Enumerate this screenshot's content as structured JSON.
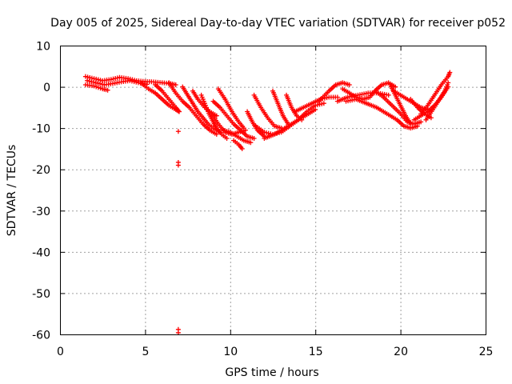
{
  "chart_data": {
    "type": "scatter",
    "title": "Day 005 of 2025, Sidereal Day-to-day VTEC variation (SDTVAR) for receiver p052",
    "xlabel": "GPS time / hours",
    "ylabel": "SDTVAR / TECUs",
    "xlim": [
      0,
      25
    ],
    "ylim": [
      -60,
      10
    ],
    "xticks": [
      0,
      5,
      10,
      15,
      20,
      25
    ],
    "yticks": [
      10,
      0,
      -10,
      -20,
      -30,
      -40,
      -50,
      -60
    ],
    "grid": true,
    "marker": "+",
    "series_color": "#ff0000",
    "series": [
      {
        "name": "SDTVAR",
        "tracks": [
          [
            [
              1.5,
              2.5
            ],
            [
              2.0,
              2.0
            ],
            [
              2.5,
              1.5
            ],
            [
              3.0,
              1.8
            ],
            [
              3.5,
              2.3
            ],
            [
              4.0,
              2.0
            ],
            [
              4.5,
              1.5
            ],
            [
              5.0,
              1.3
            ],
            [
              5.5,
              1.2
            ],
            [
              6.0,
              1.0
            ],
            [
              6.5,
              0.8
            ],
            [
              6.8,
              0.5
            ]
          ],
          [
            [
              1.6,
              1.5
            ],
            [
              2.1,
              1.0
            ],
            [
              2.6,
              0.5
            ],
            [
              3.1,
              0.8
            ],
            [
              3.6,
              1.2
            ],
            [
              4.1,
              1.5
            ],
            [
              4.6,
              1.0
            ],
            [
              5.1,
              0.6
            ]
          ],
          [
            [
              1.5,
              0.5
            ],
            [
              2.0,
              0.2
            ],
            [
              2.5,
              -0.5
            ],
            [
              2.8,
              -0.8
            ]
          ],
          [
            [
              4.8,
              0.8
            ],
            [
              5.2,
              -0.5
            ],
            [
              5.6,
              -1.5
            ],
            [
              6.0,
              -3.0
            ],
            [
              6.4,
              -4.5
            ],
            [
              6.8,
              -5.5
            ],
            [
              7.0,
              -6.0
            ]
          ],
          [
            [
              5.6,
              0.5
            ],
            [
              6.0,
              -1.0
            ],
            [
              6.4,
              -3.0
            ],
            [
              6.8,
              -5.0
            ],
            [
              7.0,
              -6.0
            ]
          ],
          [
            [
              6.4,
              1.0
            ],
            [
              6.8,
              -1.5
            ],
            [
              7.2,
              -3.5
            ],
            [
              7.6,
              -5.0
            ],
            [
              8.0,
              -7.0
            ],
            [
              8.4,
              -9.0
            ],
            [
              8.8,
              -10.5
            ],
            [
              9.2,
              -11.5
            ]
          ],
          [
            [
              7.2,
              0.0
            ],
            [
              7.5,
              -2.0
            ],
            [
              7.8,
              -4.0
            ],
            [
              8.1,
              -6.0
            ],
            [
              8.4,
              -7.5
            ],
            [
              8.7,
              -9.0
            ],
            [
              9.0,
              -10.0
            ],
            [
              9.4,
              -11.0
            ]
          ],
          [
            [
              7.8,
              -1.0
            ],
            [
              8.1,
              -3.0
            ],
            [
              8.5,
              -5.0
            ],
            [
              8.8,
              -6.0
            ],
            [
              9.2,
              -7.0
            ]
          ],
          [
            [
              8.3,
              -2.0
            ],
            [
              8.5,
              -4.0
            ],
            [
              8.7,
              -6.0
            ],
            [
              9.0,
              -8.5
            ],
            [
              9.2,
              -10.0
            ],
            [
              9.5,
              -11.5
            ],
            [
              9.8,
              -12.5
            ]
          ],
          [
            [
              9.0,
              -3.5
            ],
            [
              9.4,
              -5.0
            ],
            [
              9.8,
              -7.0
            ],
            [
              10.2,
              -9.0
            ],
            [
              10.6,
              -10.5
            ],
            [
              11.0,
              -12.0
            ],
            [
              11.4,
              -12.5
            ]
          ],
          [
            [
              8.9,
              -6.5
            ],
            [
              9.3,
              -9.0
            ],
            [
              9.7,
              -11.0
            ],
            [
              10.1,
              -11.5
            ],
            [
              10.5,
              -11.0
            ],
            [
              10.9,
              -10.5
            ]
          ],
          [
            [
              9.3,
              -0.5
            ],
            [
              9.7,
              -3.0
            ],
            [
              10.1,
              -6.0
            ],
            [
              10.5,
              -8.5
            ],
            [
              10.8,
              -10.0
            ]
          ],
          [
            [
              9.6,
              -10.5
            ],
            [
              10.0,
              -11.0
            ],
            [
              10.4,
              -12.0
            ],
            [
              10.8,
              -13.0
            ],
            [
              11.2,
              -13.5
            ]
          ],
          [
            [
              10.2,
              -13.0
            ],
            [
              10.5,
              -14.0
            ],
            [
              10.7,
              -15.0
            ]
          ],
          [
            [
              11.0,
              -6.0
            ],
            [
              11.3,
              -8.5
            ],
            [
              11.6,
              -10.5
            ],
            [
              12.0,
              -12.0
            ]
          ],
          [
            [
              11.4,
              -2.0
            ],
            [
              11.8,
              -5.0
            ],
            [
              12.2,
              -7.5
            ],
            [
              12.6,
              -9.5
            ],
            [
              13.0,
              -10.0
            ]
          ],
          [
            [
              11.5,
              -9.5
            ],
            [
              12.0,
              -11.0
            ],
            [
              12.5,
              -11.5
            ],
            [
              13.0,
              -11.0
            ],
            [
              13.5,
              -9.5
            ],
            [
              14.0,
              -8.0
            ],
            [
              14.5,
              -6.0
            ],
            [
              15.0,
              -4.5
            ],
            [
              15.5,
              -4.0
            ]
          ],
          [
            [
              12.0,
              -12.5
            ],
            [
              12.6,
              -11.5
            ],
            [
              13.2,
              -10.0
            ],
            [
              13.8,
              -8.5
            ],
            [
              14.4,
              -7.0
            ],
            [
              15.0,
              -5.5
            ]
          ],
          [
            [
              12.5,
              -1.0
            ],
            [
              12.8,
              -4.0
            ],
            [
              13.1,
              -7.0
            ],
            [
              13.4,
              -9.0
            ]
          ],
          [
            [
              13.3,
              -2.0
            ],
            [
              13.6,
              -5.0
            ],
            [
              13.9,
              -7.0
            ],
            [
              14.2,
              -8.0
            ]
          ],
          [
            [
              13.8,
              -6.0
            ],
            [
              14.3,
              -5.0
            ],
            [
              14.8,
              -4.0
            ],
            [
              15.3,
              -3.0
            ],
            [
              15.8,
              -2.5
            ],
            [
              16.3,
              -2.5
            ]
          ],
          [
            [
              15.2,
              -3.5
            ],
            [
              15.8,
              -1.0
            ],
            [
              16.2,
              0.5
            ],
            [
              16.6,
              1.0
            ],
            [
              17.0,
              0.5
            ]
          ],
          [
            [
              16.3,
              -3.5
            ],
            [
              16.9,
              -2.5
            ],
            [
              17.5,
              -2.0
            ],
            [
              18.1,
              -1.5
            ],
            [
              18.7,
              -1.5
            ],
            [
              19.3,
              -2.0
            ]
          ],
          [
            [
              16.6,
              -0.5
            ],
            [
              17.0,
              -1.5
            ],
            [
              17.4,
              -2.5
            ],
            [
              17.8,
              -3.0
            ],
            [
              18.2,
              -2.5
            ],
            [
              18.5,
              -1.0
            ],
            [
              18.9,
              0.5
            ],
            [
              19.3,
              1.0
            ],
            [
              19.7,
              0.0
            ]
          ],
          [
            [
              16.8,
              -3.5
            ],
            [
              17.4,
              -3.0
            ],
            [
              18.0,
              -4.0
            ],
            [
              18.6,
              -5.0
            ],
            [
              19.2,
              -6.5
            ],
            [
              19.8,
              -8.0
            ],
            [
              20.2,
              -9.5
            ],
            [
              20.6,
              -10.0
            ],
            [
              21.0,
              -9.5
            ]
          ],
          [
            [
              18.5,
              -1.0
            ],
            [
              19.0,
              -2.5
            ],
            [
              19.5,
              -4.5
            ],
            [
              20.0,
              -6.5
            ],
            [
              20.4,
              -8.5
            ],
            [
              20.8,
              -9.0
            ],
            [
              21.2,
              -8.5
            ]
          ],
          [
            [
              19.4,
              0.5
            ],
            [
              19.7,
              -2.0
            ],
            [
              20.0,
              -4.5
            ],
            [
              20.3,
              -7.0
            ],
            [
              20.6,
              -9.0
            ]
          ],
          [
            [
              19.6,
              -1.0
            ],
            [
              20.0,
              -2.0
            ],
            [
              20.4,
              -3.0
            ],
            [
              20.8,
              -4.0
            ],
            [
              21.2,
              -5.0
            ],
            [
              21.6,
              -5.5
            ]
          ],
          [
            [
              20.6,
              -3.0
            ],
            [
              21.0,
              -5.0
            ],
            [
              21.4,
              -6.5
            ],
            [
              21.8,
              -7.5
            ]
          ],
          [
            [
              20.8,
              -8.0
            ],
            [
              21.2,
              -7.0
            ],
            [
              21.6,
              -6.0
            ],
            [
              22.0,
              -4.5
            ],
            [
              22.4,
              -2.5
            ],
            [
              22.8,
              0.0
            ]
          ],
          [
            [
              21.2,
              -6.5
            ],
            [
              21.6,
              -4.5
            ],
            [
              22.0,
              -2.0
            ],
            [
              22.4,
              0.5
            ],
            [
              22.8,
              2.5
            ],
            [
              22.9,
              3.5
            ]
          ],
          [
            [
              21.5,
              -8.0
            ],
            [
              21.9,
              -5.5
            ],
            [
              22.3,
              -3.0
            ],
            [
              22.6,
              -1.0
            ],
            [
              22.8,
              1.0
            ]
          ]
        ],
        "outliers": [
          [
            6.95,
            -10.8
          ],
          [
            6.95,
            -18.3
          ],
          [
            6.95,
            -19.0
          ],
          [
            6.95,
            -58.8
          ],
          [
            6.95,
            -59.6
          ]
        ]
      }
    ]
  }
}
